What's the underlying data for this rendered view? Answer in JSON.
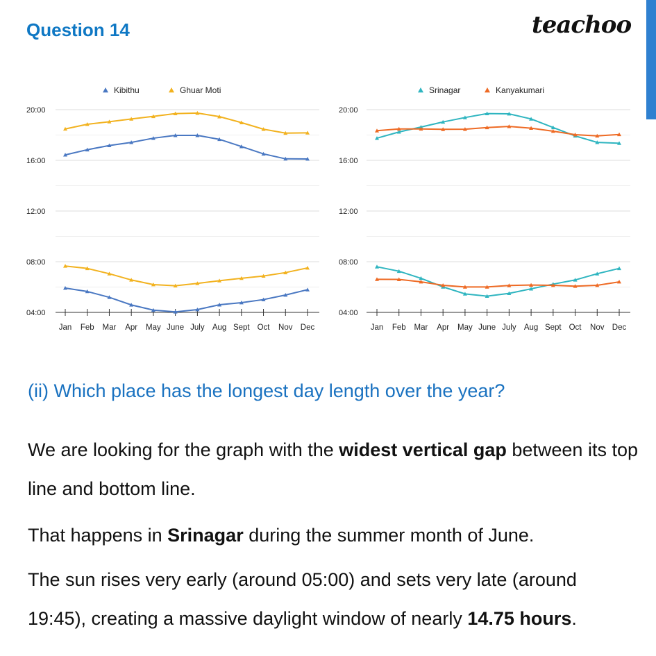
{
  "header": {
    "title": "Question 14",
    "logo": "teachoo"
  },
  "accent": "#0f78c4",
  "chart_data": [
    {
      "type": "line",
      "title": "",
      "xlabel": "",
      "ylabel": "",
      "categories": [
        "Jan",
        "Feb",
        "Mar",
        "Apr",
        "May",
        "June",
        "July",
        "Aug",
        "Sept",
        "Oct",
        "Nov",
        "Dec"
      ],
      "yticks": [
        "04:00",
        "08:00",
        "12:00",
        "16:00",
        "20:00"
      ],
      "ylim": [
        4,
        20
      ],
      "grid": true,
      "legend": "top",
      "series": [
        {
          "name": "Kibithu",
          "color": "#4a78c2",
          "legend": true,
          "values": [
            16.43,
            16.84,
            17.17,
            17.42,
            17.75,
            17.97,
            17.97,
            17.66,
            17.09,
            16.51,
            16.12,
            16.11
          ]
        },
        {
          "name": "Kibithu",
          "color": "#4a78c2",
          "legend": false,
          "values": [
            5.92,
            5.65,
            5.19,
            4.59,
            4.18,
            4.04,
            4.22,
            4.6,
            4.77,
            5.01,
            5.37,
            5.79
          ]
        },
        {
          "name": "Ghuar Moti",
          "color": "#f2b21f",
          "legend": true,
          "values": [
            18.48,
            18.85,
            19.05,
            19.27,
            19.47,
            19.69,
            19.73,
            19.45,
            18.98,
            18.46,
            18.15,
            18.17
          ]
        },
        {
          "name": "Ghuar Moti",
          "color": "#f2b21f",
          "legend": false,
          "values": [
            7.66,
            7.47,
            7.05,
            6.56,
            6.19,
            6.1,
            6.29,
            6.5,
            6.69,
            6.87,
            7.14,
            7.51
          ]
        }
      ]
    },
    {
      "type": "line",
      "title": "",
      "xlabel": "",
      "ylabel": "",
      "categories": [
        "Jan",
        "Feb",
        "Mar",
        "Apr",
        "May",
        "June",
        "July",
        "Aug",
        "Sept",
        "Oct",
        "Nov",
        "Dec"
      ],
      "yticks": [
        "04:00",
        "08:00",
        "12:00",
        "16:00",
        "20:00"
      ],
      "ylim": [
        4,
        20
      ],
      "grid": true,
      "legend": "top",
      "series": [
        {
          "name": "Srinagar",
          "color": "#2fb5c0",
          "legend": true,
          "values": [
            17.75,
            18.24,
            18.63,
            19.03,
            19.38,
            19.69,
            19.67,
            19.27,
            18.59,
            17.93,
            17.42,
            17.35
          ]
        },
        {
          "name": "Srinagar",
          "color": "#2fb5c0",
          "legend": false,
          "values": [
            7.6,
            7.25,
            6.69,
            6.01,
            5.46,
            5.28,
            5.5,
            5.86,
            6.23,
            6.56,
            7.05,
            7.47
          ]
        },
        {
          "name": "Kanyakumari",
          "color": "#ee6a24",
          "legend": true,
          "values": [
            18.34,
            18.48,
            18.48,
            18.45,
            18.46,
            18.59,
            18.68,
            18.54,
            18.3,
            18.03,
            17.93,
            18.04
          ]
        },
        {
          "name": "Kanyakumari",
          "color": "#ee6a24",
          "legend": false,
          "values": [
            6.61,
            6.6,
            6.41,
            6.14,
            6.01,
            6.01,
            6.12,
            6.16,
            6.14,
            6.07,
            6.14,
            6.41
          ]
        }
      ]
    }
  ],
  "question": "(ii) Which place has the longest day length over the year?",
  "answer": {
    "p1a": "We are looking for the graph with the ",
    "p1b": "widest vertical gap",
    "p1c": " between its top line and bottom line.",
    "p2a": "That happens in ",
    "p2b": "Srinagar",
    "p2c": " during the summer month of June.",
    "p3a": "The sun rises very early (around 05:00) and sets very late (around 19:45), creating a massive daylight window of nearly ",
    "p3b": "14.75 hours",
    "p3c": "."
  }
}
